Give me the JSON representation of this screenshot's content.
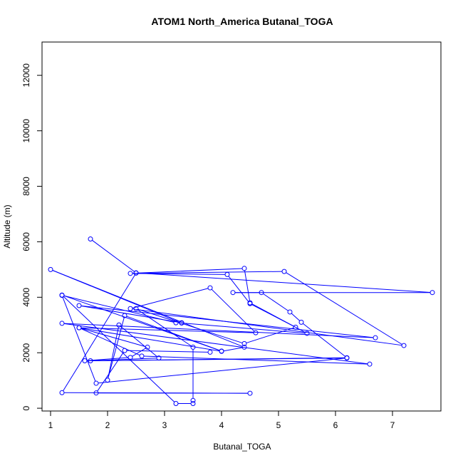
{
  "chart_data": {
    "type": "line",
    "title": "ATOM1 North_America Butanal_TOGA",
    "xlabel": "Butanal_TOGA",
    "ylabel": "Altitude (m)",
    "xlim": [
      0.85,
      7.85
    ],
    "ylim": [
      -100,
      13200
    ],
    "xticks": [
      1,
      2,
      3,
      4,
      5,
      6,
      7
    ],
    "yticks": [
      0,
      2000,
      4000,
      6000,
      8000,
      10000,
      12000
    ],
    "grid": false,
    "markers": "open-circle",
    "series": [
      {
        "color": "#0000ff",
        "points": [
          [
            1.7,
            6100
          ],
          [
            2.5,
            4880
          ],
          [
            7.7,
            4170
          ],
          [
            4.2,
            4170
          ],
          [
            4.7,
            4170
          ],
          [
            5.2,
            3470
          ],
          [
            5.4,
            3100
          ],
          [
            6.2,
            1820
          ],
          [
            1.7,
            1710
          ],
          [
            2.9,
            1810
          ],
          [
            2.2,
            3000
          ],
          [
            2.0,
            1010
          ],
          [
            2.3,
            3340
          ],
          [
            4.0,
            2060
          ],
          [
            1.2,
            4080
          ],
          [
            3.2,
            170
          ],
          [
            3.5,
            170
          ],
          [
            3.5,
            280
          ],
          [
            3.5,
            2200
          ],
          [
            2.5,
            3590
          ],
          [
            4.4,
            2330
          ],
          [
            5.3,
            2920
          ],
          [
            4.5,
            3770
          ],
          [
            4.1,
            4820
          ],
          [
            2.4,
            4860
          ],
          [
            5.1,
            4930
          ],
          [
            7.2,
            2260
          ],
          [
            2.4,
            3590
          ],
          [
            3.8,
            4340
          ],
          [
            4.6,
            2720
          ],
          [
            1.5,
            2900
          ],
          [
            2.6,
            1880
          ],
          [
            6.6,
            1590
          ],
          [
            1.2,
            3060
          ],
          [
            6.7,
            2540
          ],
          [
            1.5,
            3700
          ],
          [
            3.3,
            3080
          ],
          [
            3.2,
            3080
          ],
          [
            1.2,
            4070
          ],
          [
            1.8,
            900
          ],
          [
            6.2,
            1810
          ],
          [
            1.6,
            1710
          ],
          [
            2.4,
            1830
          ],
          [
            2.7,
            2200
          ],
          [
            1.5,
            2900
          ],
          [
            4.0,
            2050
          ],
          [
            4.4,
            2200
          ],
          [
            1.0,
            5000
          ],
          [
            3.3,
            3070
          ],
          [
            5.5,
            2700
          ],
          [
            4.5,
            3800
          ],
          [
            4.4,
            5040
          ],
          [
            2.5,
            4870
          ],
          [
            1.2,
            560
          ],
          [
            4.5,
            540
          ],
          [
            1.8,
            550
          ],
          [
            2.3,
            2080
          ],
          [
            3.8,
            2020
          ]
        ]
      }
    ]
  }
}
